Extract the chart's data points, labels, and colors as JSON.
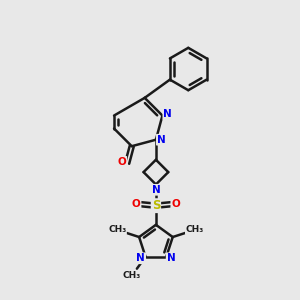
{
  "background_color": "#e8e8e8",
  "bond_color": "#1a1a1a",
  "nitrogen_color": "#0000ee",
  "oxygen_color": "#ee0000",
  "sulfur_color": "#bbbb00",
  "line_width": 1.8,
  "figsize": [
    3.0,
    3.0
  ],
  "dpi": 100,
  "xlim": [
    0,
    10
  ],
  "ylim": [
    0,
    10
  ]
}
